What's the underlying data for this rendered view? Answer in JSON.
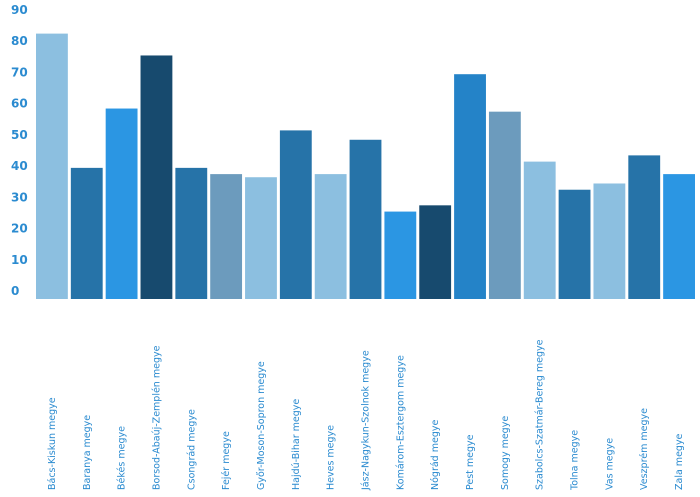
{
  "chart_data": {
    "type": "bar",
    "categories": [
      "Bács-Kiskun megye",
      "Baranya megye",
      "Békés megye",
      "Borsod-Abaúj-Zemplén megye",
      "Csongrád megye",
      "Fejér megye",
      "Győr-Moson-Sopron megye",
      "Hajdú-Bihar megye",
      "Heves megye",
      "Jász-Nagykun-Szolnok megye",
      "Komárom-Esztergom megye",
      "Nógrád megye",
      "Pest megye",
      "Somogy megye",
      "Szabolcs-Szatmár-Bereg megye",
      "Tolna megye",
      "Vas megye",
      "Veszprém megye",
      "Zala megye"
    ],
    "values": [
      85,
      42,
      61,
      78,
      42,
      40,
      39,
      54,
      40,
      51,
      28,
      30,
      72,
      60,
      44,
      35,
      37,
      46,
      40
    ],
    "bar_colors": [
      "#8cbfe0",
      "#2673a8",
      "#2b96e3",
      "#174a6e",
      "#2673a8",
      "#6c9bbd",
      "#8cbfe0",
      "#2673a8",
      "#8cbfe0",
      "#2673a8",
      "#2b96e3",
      "#174a6e",
      "#2483c8",
      "#6c9bbd",
      "#8cbfe0",
      "#2673a8",
      "#8cbfe0",
      "#2673a8",
      "#2b96e3"
    ],
    "y_ticks": [
      0,
      10,
      20,
      30,
      40,
      50,
      60,
      70,
      80,
      90
    ],
    "ylim": [
      0,
      90
    ],
    "title": "",
    "xlabel": "",
    "ylabel": "",
    "grid": false,
    "legend": "none",
    "label_color": "#2b8bd0"
  }
}
